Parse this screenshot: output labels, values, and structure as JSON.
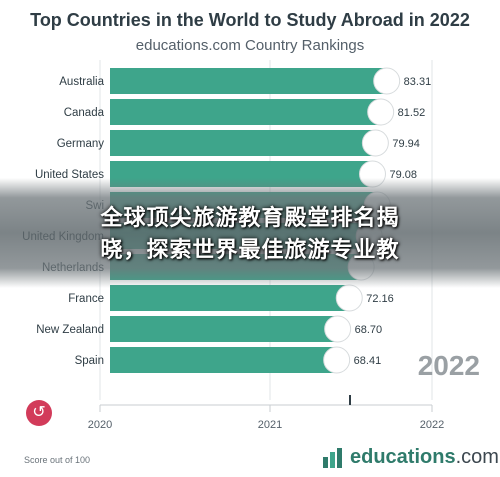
{
  "chart_data": {
    "type": "bar",
    "title": "Top Countries in the World to Study Abroad in 2022",
    "subtitle": "educations.com Country Rankings",
    "categories": [
      "Australia",
      "Canada",
      "Germany",
      "United States",
      "Switzerland",
      "United Kingdom",
      "Netherlands",
      "France",
      "New Zealand",
      "Spain"
    ],
    "values": [
      83.31,
      81.52,
      79.94,
      79.08,
      null,
      null,
      null,
      72.16,
      68.7,
      68.41
    ],
    "value_labels": [
      "83.31",
      "81.52",
      "79.94",
      "79.08",
      "",
      "",
      "",
      "72.16",
      "68.70",
      "68.41"
    ],
    "category_labels": [
      "Australia",
      "Canada",
      "Germany",
      "United States",
      "Swi",
      "United Kingdom",
      "Netherlands",
      "France",
      "New Zealand",
      "Spain"
    ],
    "x_ticks": [
      "2020",
      "2021",
      "2022"
    ],
    "bar_color": "#3ea58b",
    "bar_scale_max": 84
  },
  "year_label": "2022",
  "footnote": "Score out of 100",
  "brand": {
    "part1": "educations",
    "part2": ".com"
  },
  "banner": {
    "line1": "全球顶尖旅游教育殿堂排名揭",
    "line2": "晓，探索世界最佳旅游专业教"
  }
}
